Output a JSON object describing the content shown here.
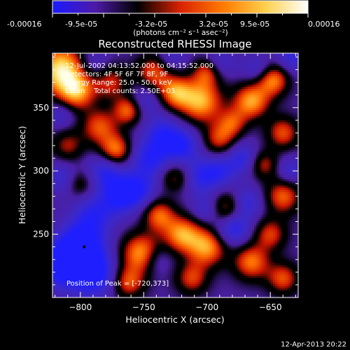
{
  "colorbar": {
    "tick_labels": [
      "-0.00016",
      "-9.5e-05",
      "-3.2e-05",
      "3.2e-05",
      "9.5e-05",
      "0.00016"
    ],
    "units_label": "(photons cm⁻² s⁻¹ asec⁻²)",
    "colors": [
      "#1a1aff",
      "#4d1aa8",
      "#000000",
      "#d92200",
      "#ff7a00",
      "#ffd04d",
      "#ffffff"
    ]
  },
  "annotations": {
    "time_range": "12-Jul-2002 04:13:52.000 to 04:15:52.000",
    "detectors": "Detectors: 4F 5F 6F 7F 8F, 9F",
    "energy": "Energy Range: 25.0 - 50.0 keV",
    "clean": "Clean    Total counts: 2.50E+03",
    "peak": "Position of Peak = [-720,373]"
  },
  "footer_timestamp": "12-Apr-2013 20:22",
  "chart_data": {
    "type": "heatmap",
    "title": "Reconstructed RHESSI Image",
    "xlabel": "Heliocentric X (arcsec)",
    "ylabel": "Heliocentric Y (arcsec)",
    "xlim": [
      -822,
      -628
    ],
    "ylim": [
      200,
      393
    ],
    "xticks": [
      -800,
      -750,
      -700,
      -650
    ],
    "yticks": [
      250,
      300,
      350
    ],
    "x_tick_labels": [
      "−800",
      "−750",
      "−700",
      "−650"
    ],
    "y_tick_labels": [
      "250",
      "300",
      "350"
    ],
    "value_range": [
      -0.00016,
      0.00016
    ],
    "peak": [
      -720,
      373
    ],
    "blobs": [
      {
        "x": -815,
        "y": 380,
        "v": 1.0,
        "r": 14
      },
      {
        "x": -803,
        "y": 362,
        "v": 0.7,
        "r": 10
      },
      {
        "x": -810,
        "y": 320,
        "v": 0.45,
        "r": 9
      },
      {
        "x": -800,
        "y": 290,
        "v": 0.35,
        "r": 8
      },
      {
        "x": -785,
        "y": 335,
        "v": 0.6,
        "r": 10
      },
      {
        "x": -772,
        "y": 316,
        "v": 0.75,
        "r": 9
      },
      {
        "x": -776,
        "y": 370,
        "v": 0.5,
        "r": 10
      },
      {
        "x": -762,
        "y": 348,
        "v": 0.7,
        "r": 8
      },
      {
        "x": -742,
        "y": 378,
        "v": 0.6,
        "r": 10
      },
      {
        "x": -725,
        "y": 362,
        "v": 0.7,
        "r": 9
      },
      {
        "x": -705,
        "y": 355,
        "v": 0.85,
        "r": 12
      },
      {
        "x": -690,
        "y": 325,
        "v": 0.55,
        "r": 9
      },
      {
        "x": -700,
        "y": 378,
        "v": 0.55,
        "r": 8
      },
      {
        "x": -680,
        "y": 338,
        "v": 0.5,
        "r": 8
      },
      {
        "x": -665,
        "y": 355,
        "v": 0.8,
        "r": 10
      },
      {
        "x": -648,
        "y": 372,
        "v": 0.75,
        "r": 9
      },
      {
        "x": -640,
        "y": 330,
        "v": 0.6,
        "r": 9
      },
      {
        "x": -655,
        "y": 305,
        "v": 0.5,
        "r": 8
      },
      {
        "x": -640,
        "y": 280,
        "v": 0.65,
        "r": 10
      },
      {
        "x": -650,
        "y": 250,
        "v": 0.55,
        "r": 9
      },
      {
        "x": -665,
        "y": 228,
        "v": 0.7,
        "r": 10
      },
      {
        "x": -640,
        "y": 215,
        "v": 0.6,
        "r": 9
      },
      {
        "x": -685,
        "y": 270,
        "v": 0.6,
        "r": 9
      },
      {
        "x": -700,
        "y": 240,
        "v": 0.8,
        "r": 11
      },
      {
        "x": -720,
        "y": 250,
        "v": 0.75,
        "r": 10
      },
      {
        "x": -738,
        "y": 265,
        "v": 0.65,
        "r": 9
      },
      {
        "x": -752,
        "y": 235,
        "v": 0.8,
        "r": 11
      },
      {
        "x": -762,
        "y": 212,
        "v": 0.6,
        "r": 9
      },
      {
        "x": -712,
        "y": 215,
        "v": 0.55,
        "r": 9
      },
      {
        "x": -725,
        "y": 295,
        "v": 0.45,
        "r": 8
      },
      {
        "x": -800,
        "y": 240,
        "v": -0.85,
        "r": 13
      },
      {
        "x": -790,
        "y": 218,
        "v": -0.7,
        "r": 12
      },
      {
        "x": -815,
        "y": 225,
        "v": -0.75,
        "r": 12
      },
      {
        "x": -770,
        "y": 280,
        "v": -0.55,
        "r": 11
      },
      {
        "x": -780,
        "y": 300,
        "v": -0.5,
        "r": 10
      },
      {
        "x": -745,
        "y": 310,
        "v": -0.55,
        "r": 11
      },
      {
        "x": -755,
        "y": 285,
        "v": -0.5,
        "r": 10
      },
      {
        "x": -735,
        "y": 330,
        "v": -0.45,
        "r": 10
      },
      {
        "x": -720,
        "y": 320,
        "v": -0.55,
        "r": 10
      },
      {
        "x": -705,
        "y": 295,
        "v": -0.45,
        "r": 10
      },
      {
        "x": -690,
        "y": 300,
        "v": -0.4,
        "r": 9
      },
      {
        "x": -680,
        "y": 255,
        "v": -0.6,
        "r": 10
      },
      {
        "x": -668,
        "y": 275,
        "v": -0.4,
        "r": 9
      },
      {
        "x": -672,
        "y": 310,
        "v": -0.45,
        "r": 9
      },
      {
        "x": -700,
        "y": 270,
        "v": -0.35,
        "r": 8
      },
      {
        "x": -740,
        "y": 230,
        "v": -0.3,
        "r": 8
      },
      {
        "x": -790,
        "y": 265,
        "v": -0.45,
        "r": 11
      },
      {
        "x": -750,
        "y": 355,
        "v": -0.35,
        "r": 9
      },
      {
        "x": -790,
        "y": 385,
        "v": -0.3,
        "r": 9
      },
      {
        "x": -690,
        "y": 385,
        "v": -0.3,
        "r": 9
      },
      {
        "x": -633,
        "y": 390,
        "v": -0.4,
        "r": 9
      },
      {
        "x": -660,
        "y": 380,
        "v": -0.35,
        "r": 8
      },
      {
        "x": -635,
        "y": 300,
        "v": -0.35,
        "r": 8
      },
      {
        "x": -815,
        "y": 295,
        "v": -0.35,
        "r": 9
      },
      {
        "x": -815,
        "y": 345,
        "v": -0.3,
        "r": 8
      },
      {
        "x": -728,
        "y": 390,
        "v": -0.3,
        "r": 8
      }
    ]
  }
}
